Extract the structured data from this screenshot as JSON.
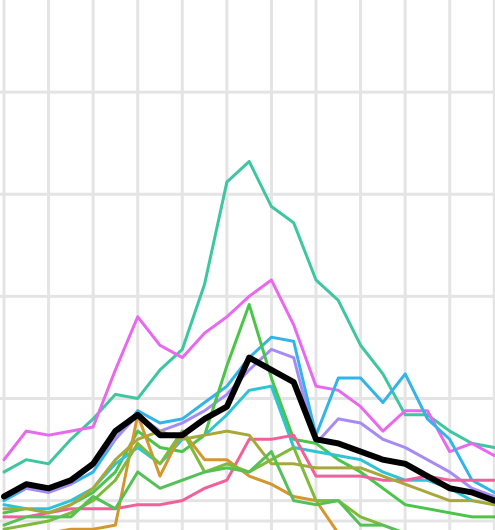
{
  "chart_data": {
    "type": "line",
    "title": "",
    "xlabel": "",
    "ylabel": "",
    "grid": true,
    "legend": "none",
    "x": [
      0,
      1,
      2,
      3,
      4,
      5,
      6,
      7,
      8,
      9,
      10,
      11,
      12,
      13,
      14,
      15,
      16,
      17,
      18,
      19,
      20,
      21,
      22
    ],
    "xlim": [
      0,
      22
    ],
    "ylim": [
      0,
      106
    ],
    "grid_x": [
      0,
      2,
      4,
      6,
      8,
      10,
      12,
      14,
      16,
      18,
      20,
      22
    ],
    "grid_y": [
      0,
      5,
      30,
      55,
      80,
      105
    ],
    "series": [
      {
        "color": "#3EC6A0",
        "values": [
          12,
          15,
          14,
          20,
          25,
          31,
          30,
          37,
          42,
          58,
          83,
          88,
          77,
          73,
          59,
          54,
          43,
          36,
          26,
          26,
          22,
          19,
          18
        ]
      },
      {
        "color": "#E868EE",
        "values": [
          15,
          22,
          21,
          22,
          23,
          37,
          50,
          43,
          40,
          46,
          50,
          55,
          59,
          48,
          33,
          32,
          28,
          22,
          27,
          27,
          17,
          19,
          16
        ]
      },
      {
        "color": "#33B4E8",
        "values": [
          5,
          8,
          7,
          9,
          12,
          20,
          27,
          24,
          25,
          29,
          33,
          40,
          45,
          44,
          21,
          35,
          35,
          29,
          36,
          25,
          20,
          10,
          7
        ]
      },
      {
        "color": "#A78BF5",
        "values": [
          6,
          8,
          7,
          9,
          14,
          20,
          26,
          22,
          24,
          27,
          31,
          37,
          42,
          40,
          19,
          25,
          24,
          20,
          18,
          15,
          12,
          8,
          6
        ]
      },
      {
        "color": "#4CC44A",
        "values": [
          2,
          3,
          2,
          4,
          7,
          12,
          22,
          18,
          17,
          21,
          38,
          53,
          35,
          20,
          19,
          15,
          12,
          8,
          4,
          3,
          2,
          1,
          1
        ]
      },
      {
        "color": "#2EC4D6",
        "values": [
          4,
          3,
          3,
          5,
          8,
          14,
          18,
          14,
          20,
          21,
          26,
          32,
          33,
          18,
          17,
          16,
          15,
          12,
          10,
          10,
          8,
          5,
          4
        ]
      },
      {
        "color": "#F0609A",
        "values": [
          1,
          1,
          2,
          3,
          3,
          3,
          4,
          4,
          5,
          8,
          10,
          20,
          20,
          21,
          11,
          11,
          11,
          10,
          10,
          11,
          10,
          10,
          10
        ]
      },
      {
        "color": "#A8A83A",
        "values": [
          3,
          3,
          2,
          4,
          8,
          15,
          20,
          22,
          20,
          21,
          22,
          21,
          14,
          14,
          13,
          13,
          13,
          11,
          9,
          7,
          5,
          5,
          4
        ]
      },
      {
        "color": "#D4962E",
        "values": [
          -3,
          -3,
          -3,
          -2,
          -2,
          -1,
          26,
          11,
          22,
          15,
          15,
          11,
          9,
          6,
          5,
          -3,
          -3,
          -3,
          -3,
          -3,
          -3,
          -3,
          -3
        ]
      },
      {
        "color": "#7FBA3A",
        "values": [
          -2,
          -1,
          0,
          2,
          5,
          10,
          19,
          14,
          22,
          12,
          14,
          12,
          15,
          18,
          5,
          5,
          1,
          -1,
          -3,
          -3,
          -3,
          -3,
          -3
        ]
      },
      {
        "color": "#55C055",
        "values": [
          -1,
          1,
          1,
          1,
          6,
          3,
          12,
          8,
          10,
          12,
          13,
          12,
          17,
          5,
          4,
          5,
          -1,
          -1,
          -3,
          -3,
          -3,
          -3,
          -3
        ]
      },
      {
        "color": "#000000",
        "values": [
          6,
          9,
          8,
          10,
          14,
          22,
          26,
          21,
          21,
          25,
          28,
          40,
          37,
          34,
          20,
          19,
          17,
          15,
          14,
          11,
          8,
          7,
          5
        ]
      }
    ]
  }
}
